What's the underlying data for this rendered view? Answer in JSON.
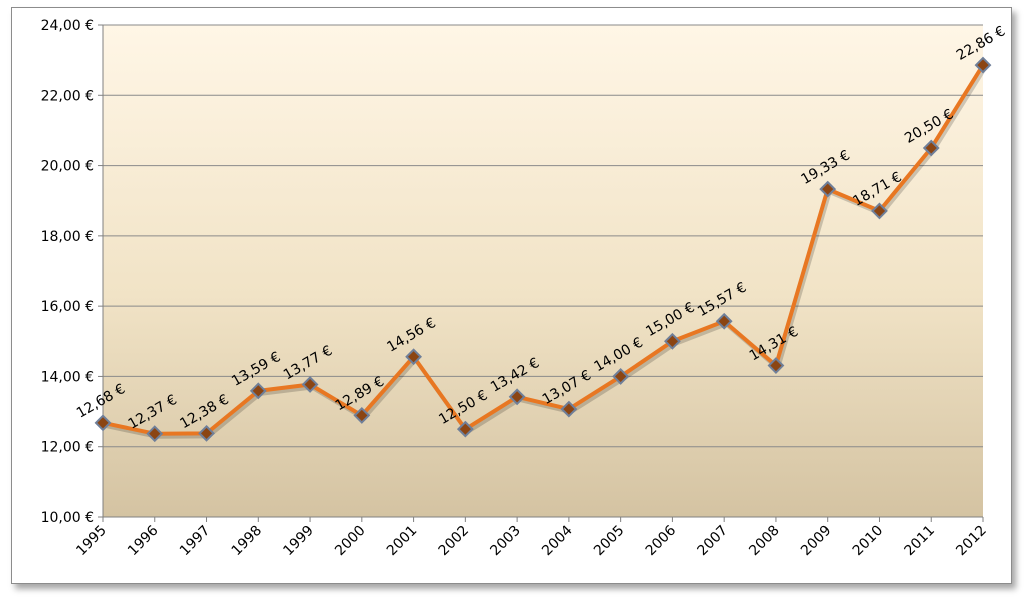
{
  "chart_data": {
    "type": "line",
    "categories": [
      "1995",
      "1996",
      "1997",
      "1998",
      "1999",
      "2000",
      "2001",
      "2002",
      "2003",
      "2004",
      "2005",
      "2006",
      "2007",
      "2008",
      "2009",
      "2010",
      "2011",
      "2012"
    ],
    "series": [
      {
        "values": [
          12.68,
          12.37,
          12.38,
          13.59,
          13.77,
          12.89,
          14.56,
          12.5,
          13.42,
          13.07,
          14.0,
          15.0,
          15.57,
          14.31,
          19.33,
          18.71,
          20.5,
          22.86
        ],
        "labels": [
          "12,68 €",
          "12,37 €",
          "12,38 €",
          "13,59 €",
          "13,77 €",
          "12,89 €",
          "14,56 €",
          "12,50 €",
          "13,42 €",
          "13,07 €",
          "14,00 €",
          "15,00 €",
          "15,57 €",
          "14,31 €",
          "19,33 €",
          "18,71 €",
          "20,50 €",
          "22,86 €"
        ],
        "color": "#E87722",
        "marker": "diamond",
        "marker_color": "#8B4513"
      }
    ],
    "y_ticks": [
      10,
      12,
      14,
      16,
      18,
      20,
      22,
      24
    ],
    "y_tick_labels": [
      "10,00 €",
      "12,00 €",
      "14,00 €",
      "16,00 €",
      "18,00 €",
      "20,00 €",
      "22,00 €",
      "24,00 €"
    ],
    "ylim": [
      10,
      24
    ],
    "grid": true,
    "title": "",
    "xlabel": "",
    "ylabel": "",
    "plot_background": [
      "#FFF6E6",
      "#D4C3A2"
    ]
  }
}
